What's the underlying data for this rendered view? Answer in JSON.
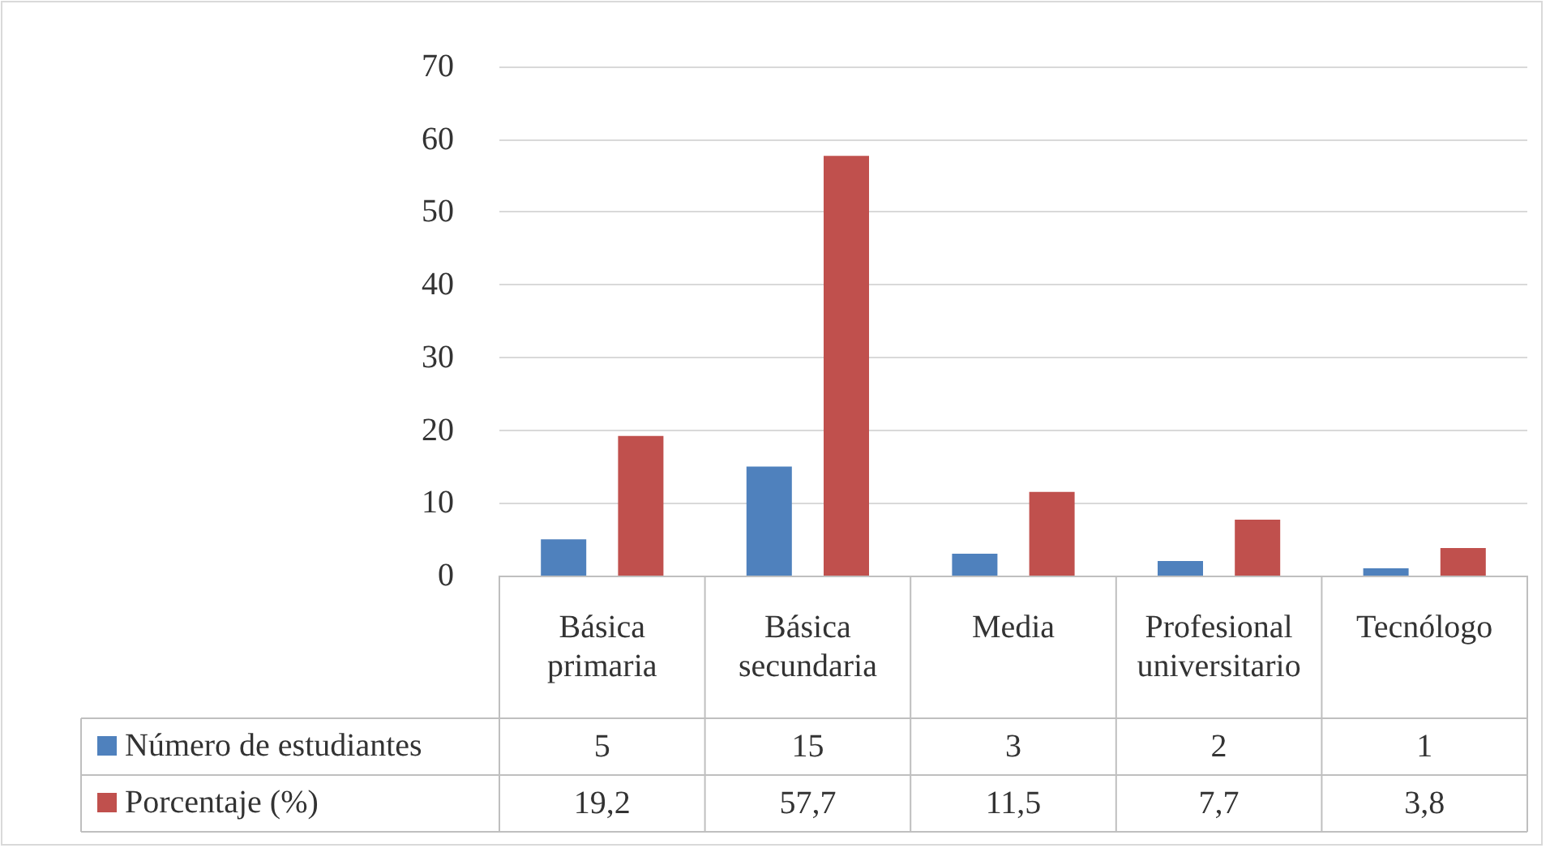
{
  "chart_data": {
    "type": "bar",
    "categories": [
      "Básica primaria",
      "Básica secundaria",
      "Media",
      "Profesional universitario",
      "Tecnólogo"
    ],
    "series": [
      {
        "name": "Número de estudiantes",
        "color": "#4f81bd",
        "values": [
          5,
          15,
          3,
          2,
          1
        ],
        "value_labels": [
          "5",
          "15",
          "3",
          "2",
          "1"
        ]
      },
      {
        "name": "Porcentaje (%)",
        "color": "#c0504d",
        "values": [
          19.2,
          57.7,
          11.5,
          7.7,
          3.8
        ],
        "value_labels": [
          "19,2",
          "57,7",
          "11,5",
          "7,7",
          "3,8"
        ]
      }
    ],
    "ylim": [
      0,
      70
    ],
    "yticks": [
      0,
      10,
      20,
      30,
      40,
      50,
      60,
      70
    ],
    "grid": "y",
    "legend": "bottom"
  }
}
